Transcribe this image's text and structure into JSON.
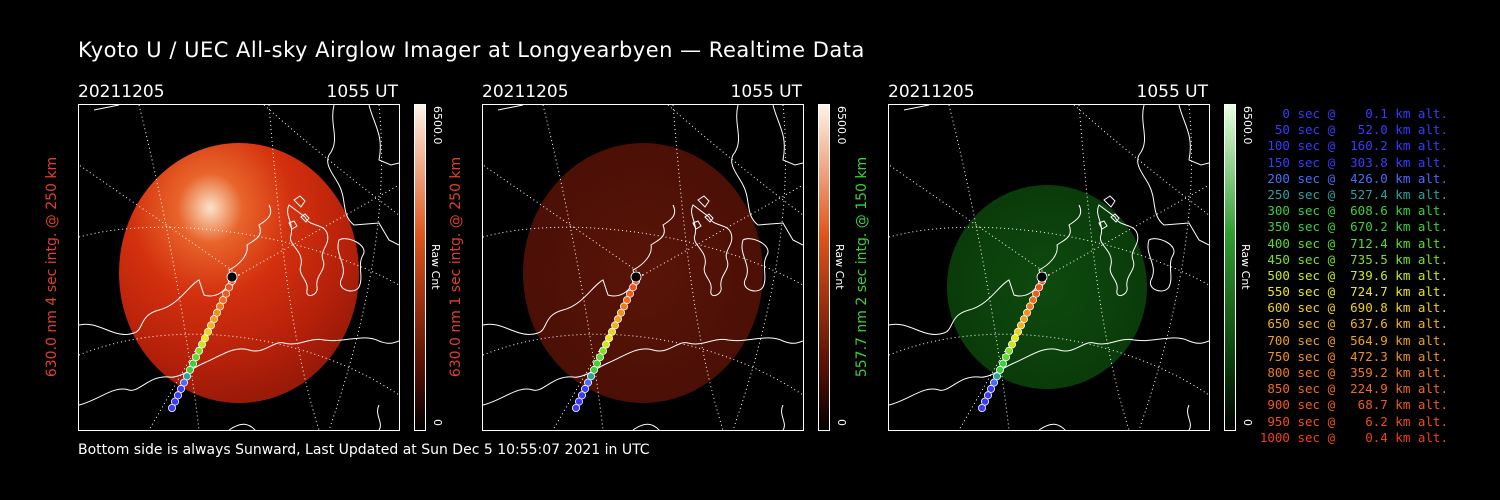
{
  "title": "Kyoto U / UEC All-sky Airglow Imager at Longyearbyen — Realtime Data",
  "footer": "Bottom side is always Sunward, Last Updated at Sun Dec  5 10:55:07 2021 in UTC",
  "panels": [
    {
      "date": "20211205",
      "time": "1055 UT",
      "ylabel": "630.0 nm 4 sec intg. @ 250 km",
      "ylabel_color": "#e0402a",
      "cbar_max": "6500.0",
      "cbar_min": "0",
      "cbar_label": "Raw Cnt",
      "color": "red",
      "intensity": "bright"
    },
    {
      "date": "20211205",
      "time": "1055 UT",
      "ylabel": "630.0 nm 1 sec intg. @ 250 km",
      "ylabel_color": "#e0402a",
      "cbar_max": "6500.0",
      "cbar_min": "0",
      "cbar_label": "Raw Cnt",
      "color": "red",
      "intensity": "dim"
    },
    {
      "date": "20211205",
      "time": "1055 UT",
      "ylabel": "557.7 nm 2 sec intg. @ 150 km",
      "ylabel_color": "#3ccf3c",
      "cbar_max": "6500.0",
      "cbar_min": "0",
      "cbar_label": "Raw Cnt",
      "color": "green",
      "intensity": "dim"
    }
  ],
  "legend": [
    {
      "text": "   0 sec @    0.1 km alt.",
      "color": "#3a3aff"
    },
    {
      "text": "  50 sec @   52.0 km alt.",
      "color": "#3a3aff"
    },
    {
      "text": " 100 sec @  160.2 km alt.",
      "color": "#3a3aff"
    },
    {
      "text": " 150 sec @  303.8 km alt.",
      "color": "#3a3aff"
    },
    {
      "text": " 200 sec @  426.0 km alt.",
      "color": "#4a6bff"
    },
    {
      "text": " 250 sec @  527.4 km alt.",
      "color": "#2f9f9f"
    },
    {
      "text": " 300 sec @  608.6 km alt.",
      "color": "#3ccf3c"
    },
    {
      "text": " 350 sec @  670.2 km alt.",
      "color": "#3ccf3c"
    },
    {
      "text": " 400 sec @  712.4 km alt.",
      "color": "#5adc2a"
    },
    {
      "text": " 450 sec @  735.5 km alt.",
      "color": "#7ee01e"
    },
    {
      "text": " 500 sec @  739.6 km alt.",
      "color": "#c8e81a"
    },
    {
      "text": " 550 sec @  724.7 km alt.",
      "color": "#e8e81a"
    },
    {
      "text": " 600 sec @  690.8 km alt.",
      "color": "#f0d01a"
    },
    {
      "text": " 650 sec @  637.6 km alt.",
      "color": "#f0b41a"
    },
    {
      "text": " 700 sec @  564.9 km alt.",
      "color": "#f0a01a"
    },
    {
      "text": " 750 sec @  472.3 km alt.",
      "color": "#f0901a"
    },
    {
      "text": " 800 sec @  359.2 km alt.",
      "color": "#f07a1a"
    },
    {
      "text": " 850 sec @  224.9 km alt.",
      "color": "#f06a1a"
    },
    {
      "text": " 900 sec @   68.7 km alt.",
      "color": "#f05a1a"
    },
    {
      "text": " 950 sec @    6.2 km alt.",
      "color": "#f0501a"
    },
    {
      "text": "1000 sec @    0.4 km alt.",
      "color": "#f0401a"
    }
  ]
}
